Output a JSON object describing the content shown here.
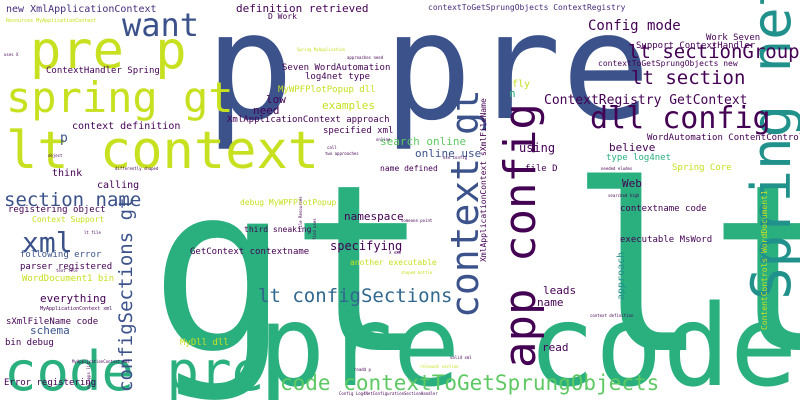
{
  "palette": {
    "green": "#2ab07f",
    "yellowgreen": "#c7e020",
    "navy": "#3b528b",
    "purple": "#440154",
    "teal": "#21918c",
    "lightgreen": "#5ec962",
    "blue": "#31688e",
    "violet": "#472d7b",
    "lime": "#addc30",
    "aqua": "#27808e"
  },
  "words": [
    {
      "text": "gt lt"
    },
    {
      "text": "p pre"
    },
    {
      "text": "pre code"
    },
    {
      "text": "lt context"
    },
    {
      "text": "code pre"
    },
    {
      "text": "pre p"
    },
    {
      "text": "spring gt"
    },
    {
      "text": "want"
    },
    {
      "text": "context gt"
    },
    {
      "text": "app config"
    },
    {
      "text": "Spring net"
    },
    {
      "text": "dll config"
    },
    {
      "text": "code contextToGetSprungObjects"
    },
    {
      "text": "lt configSections"
    },
    {
      "text": "configSections gt"
    },
    {
      "text": "xml"
    },
    {
      "text": "section name"
    },
    {
      "text": "lt sectionGroup"
    },
    {
      "text": "lt section"
    },
    {
      "text": "Config mode"
    },
    {
      "text": "ContextRegistry GetContext"
    },
    {
      "text": "definition retrieved"
    },
    {
      "text": "contextToGetSprungObjects ContextRegistry"
    },
    {
      "text": "new XmlApplicationContext"
    },
    {
      "text": "Resources MyApplicationContext"
    },
    {
      "text": "ContextHandler Spring"
    },
    {
      "text": "Work Seven"
    },
    {
      "text": "Support ContextHandler"
    },
    {
      "text": "contextToGetSprungObjects new"
    },
    {
      "text": "Seven WordAutomation"
    },
    {
      "text": "log4net type"
    },
    {
      "text": "MyWPFPlotPopup dll"
    },
    {
      "text": "XmlApplicationContext approach"
    },
    {
      "text": "context definition"
    },
    {
      "text": "specified xml"
    },
    {
      "text": "WordAutomation ContentControls"
    },
    {
      "text": "search online"
    },
    {
      "text": "online use"
    },
    {
      "text": "using"
    },
    {
      "text": "believe"
    },
    {
      "text": "type log4net"
    },
    {
      "text": "Spring Core"
    },
    {
      "text": "name defined"
    },
    {
      "text": "file D"
    },
    {
      "text": "think"
    },
    {
      "text": "calling"
    },
    {
      "text": "Web"
    },
    {
      "text": "registering object"
    },
    {
      "text": "Context Support"
    },
    {
      "text": "debug MyWPFPlotPopup"
    },
    {
      "text": "third sneaking"
    },
    {
      "text": "namespace"
    },
    {
      "text": "XmlApplicationContext sXmlFileName"
    },
    {
      "text": "contextname code"
    },
    {
      "text": "executable MsWord"
    },
    {
      "text": "approach"
    },
    {
      "text": "ContentControls WordDocument1"
    },
    {
      "text": "GetContext contextname"
    },
    {
      "text": "specifying"
    },
    {
      "text": "following error"
    },
    {
      "text": "parser registered"
    },
    {
      "text": "WordDocument1 bin"
    },
    {
      "text": "another executable"
    },
    {
      "text": "everything"
    },
    {
      "text": "MyApplicationContext xml"
    },
    {
      "text": "sXmlFileName code"
    },
    {
      "text": "schema"
    },
    {
      "text": "leads"
    },
    {
      "text": "name"
    },
    {
      "text": "bin debug"
    },
    {
      "text": "MyDll dll"
    },
    {
      "text": "read"
    },
    {
      "text": "Error registering"
    },
    {
      "text": "D Work"
    },
    {
      "text": "n"
    },
    {
      "text": "fly"
    },
    {
      "text": "low"
    },
    {
      "text": "need"
    },
    {
      "text": "examples"
    },
    {
      "text": "p"
    },
    {
      "text": "uses X"
    },
    {
      "text": "approaches need"
    },
    {
      "text": "Spring MyApplication"
    },
    {
      "text": "exe config"
    },
    {
      "text": "needed eludes"
    },
    {
      "text": "searched high"
    },
    {
      "text": "someone point"
    },
    {
      "text": "shaped bottle"
    },
    {
      "text": "context definition"
    },
    {
      "text": "readd p"
    },
    {
      "text": "valid xml"
    },
    {
      "text": "Config Log4NetConfigurationSectionHandler"
    },
    {
      "text": "file Resources"
    },
    {
      "text": "find uses"
    },
    {
      "text": "two approaches"
    },
    {
      "text": "differently shaped"
    },
    {
      "text": "object"
    },
    {
      "text": "call"
    },
    {
      "text": "X exe"
    },
    {
      "text": "MyApplicationContext xml"
    },
    {
      "text": "relevant section"
    },
    {
      "text": "lt file"
    },
    {
      "text": "text file"
    },
    {
      "text": "online"
    },
    {
      "text": "netapps lit"
    }
  ]
}
